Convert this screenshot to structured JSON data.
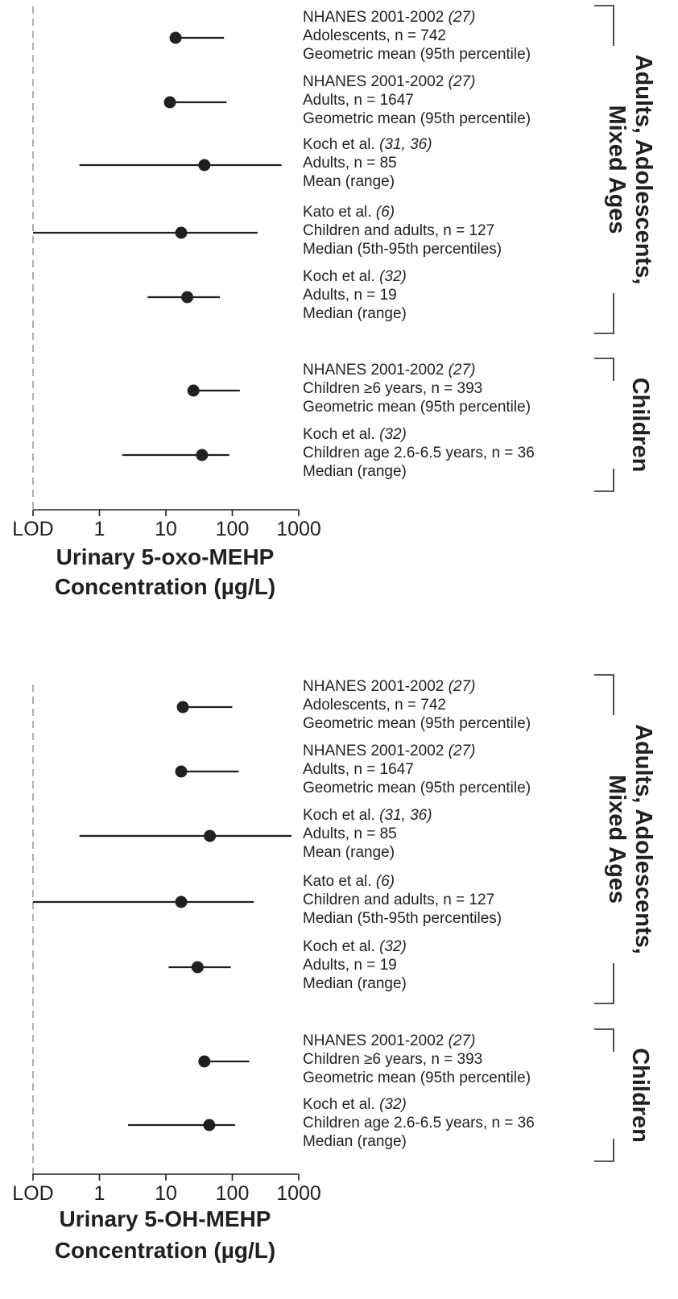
{
  "chart_data": [
    {
      "type": "scatter",
      "scale": "log",
      "orientation": "horizontal-interval",
      "x_ticks": [
        "LOD",
        "1",
        "10",
        "100",
        "1000"
      ],
      "xlabel_lines": [
        "Urinary 5-oxo-MEHP",
        "Concentration (µg/L)"
      ],
      "groups": [
        {
          "label_lines": [
            "Adults, Adolescents,",
            "Mixed Ages"
          ],
          "first": 0,
          "last": 4
        },
        {
          "label_lines": [
            "Children"
          ],
          "first": 5,
          "last": 6
        }
      ],
      "rows": [
        {
          "source": "NHANES 2001-2002",
          "ref": "(27)",
          "population": "Adolescents, n = 742",
          "statistic": "Geometric mean (95th percentile)",
          "point": 14,
          "low": 14,
          "high": 75
        },
        {
          "source": "NHANES 2001-2002",
          "ref": "(27)",
          "population": "Adults, n = 1647",
          "statistic": "Geometric mean (95th percentile)",
          "point": 11.5,
          "low": 11.5,
          "high": 82
        },
        {
          "source": "Koch et al.",
          "ref": "(31, 36)",
          "population": "Adults, n = 85",
          "statistic": "Mean (range)",
          "point": 38,
          "low": 0.5,
          "high": 550
        },
        {
          "source": "Kato et al.",
          "ref": "(6)",
          "population": "Children and adults, n = 127",
          "statistic": "Median (5th-95th percentiles)",
          "point": 17,
          "low": "LOD",
          "high": 240
        },
        {
          "source": "Koch et al.",
          "ref": "(32)",
          "population": "Adults, n = 19",
          "statistic": "Median (range)",
          "point": 21,
          "low": 5.3,
          "high": 65
        },
        {
          "source": "NHANES 2001-2002",
          "ref": "(27)",
          "population": "Children ≥6 years, n = 393",
          "statistic": "Geometric mean (95th percentile)",
          "point": 26,
          "low": 26,
          "high": 130
        },
        {
          "source": "Koch et al.",
          "ref": "(32)",
          "population": "Children age 2.6-6.5 years, n = 36",
          "statistic": "Median (range)",
          "point": 35,
          "low": 2.2,
          "high": 90
        }
      ]
    },
    {
      "type": "scatter",
      "scale": "log",
      "orientation": "horizontal-interval",
      "x_ticks": [
        "LOD",
        "1",
        "10",
        "100",
        "1000"
      ],
      "xlabel_lines": [
        "Urinary 5-OH-MEHP",
        "Concentration (µg/L)"
      ],
      "groups": [
        {
          "label_lines": [
            "Adults, Adolescents,",
            "Mixed Ages"
          ],
          "first": 0,
          "last": 4
        },
        {
          "label_lines": [
            "Children"
          ],
          "first": 5,
          "last": 6
        }
      ],
      "rows": [
        {
          "source": "NHANES 2001-2002",
          "ref": "(27)",
          "population": "Adolescents, n = 742",
          "statistic": "Geometric mean (95th percentile)",
          "point": 18,
          "low": 18,
          "high": 100
        },
        {
          "source": "NHANES 2001-2002",
          "ref": "(27)",
          "population": "Adults, n = 1647",
          "statistic": "Geometric mean (95th percentile)",
          "point": 17,
          "low": 17,
          "high": 125
        },
        {
          "source": "Koch et al.",
          "ref": "(31, 36)",
          "population": "Adults, n = 85",
          "statistic": "Mean (range)",
          "point": 46,
          "low": 0.5,
          "high": 780
        },
        {
          "source": "Kato et al.",
          "ref": "(6)",
          "population": "Children and adults, n = 127",
          "statistic": "Median (5th-95th percentiles)",
          "point": 17,
          "low": "LOD",
          "high": 210
        },
        {
          "source": "Koch et al.",
          "ref": "(32)",
          "population": "Adults, n = 19",
          "statistic": "Median (range)",
          "point": 30,
          "low": 11,
          "high": 95
        },
        {
          "source": "NHANES 2001-2002",
          "ref": "(27)",
          "population": "Children ≥6 years, n = 393",
          "statistic": "Geometric mean (95th percentile)",
          "point": 38,
          "low": 38,
          "high": 180
        },
        {
          "source": "Koch et al.",
          "ref": "(32)",
          "population": "Children age 2.6-6.5 years, n = 36",
          "statistic": "Median (range)",
          "point": 45,
          "low": 2.7,
          "high": 110
        }
      ]
    }
  ]
}
